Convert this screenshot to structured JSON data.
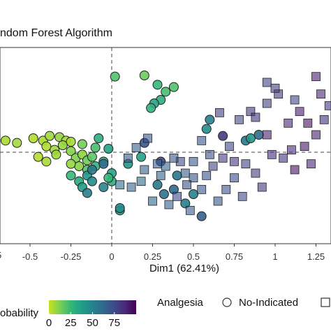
{
  "chart_data": {
    "type": "scatter",
    "title": "ndom Forest Algorithm",
    "xlabel": "Dim1 (62.41%)",
    "xlim": [
      -0.7,
      1.4
    ],
    "ylim": [
      -0.9,
      0.9
    ],
    "x_ticks": [
      -0.5,
      -0.25,
      0,
      0.25,
      0.5,
      0.75,
      1,
      1.25
    ],
    "x_tick_labels": [
      "-0.5",
      "-0.25",
      "0",
      "0.25",
      "0.5",
      "0.75",
      "1",
      "1.25"
    ],
    "left_edge_label": "5",
    "reference_lines": {
      "x": 0,
      "y": 0
    },
    "colorbar": {
      "label": "obability",
      "ticks": [
        0,
        25,
        50,
        75
      ],
      "tick_labels": [
        "0",
        "25",
        "50",
        "75"
      ],
      "range": [
        0,
        100
      ],
      "palette": [
        "#c8e020",
        "#7ad151",
        "#35b779",
        "#1f9e89",
        "#26828e",
        "#31688e",
        "#3e4a89",
        "#482878",
        "#440154"
      ]
    },
    "shape_legend": {
      "title": "Analgesia",
      "entries": [
        {
          "label": "No-Indicated",
          "shape": "circle"
        },
        {
          "label": "",
          "shape": "square"
        }
      ]
    },
    "series": [
      {
        "shape": "circle",
        "points": [
          {
            "x": -0.65,
            "y": 0.1,
            "c": 5
          },
          {
            "x": -0.58,
            "y": 0.08,
            "c": 6
          },
          {
            "x": -0.48,
            "y": 0.12,
            "c": 4
          },
          {
            "x": -0.42,
            "y": 0.1,
            "c": 5
          },
          {
            "x": -0.38,
            "y": 0.14,
            "c": 7
          },
          {
            "x": -0.32,
            "y": 0.13,
            "c": 8
          },
          {
            "x": -0.28,
            "y": 0.1,
            "c": 6
          },
          {
            "x": -0.25,
            "y": 0.09,
            "c": 5
          },
          {
            "x": -0.4,
            "y": 0.05,
            "c": 4
          },
          {
            "x": -0.35,
            "y": 0.02,
            "c": 6
          },
          {
            "x": -0.3,
            "y": 0.06,
            "c": 8
          },
          {
            "x": -0.25,
            "y": 0.01,
            "c": 10
          },
          {
            "x": -0.45,
            "y": -0.04,
            "c": 3
          },
          {
            "x": -0.4,
            "y": -0.08,
            "c": 5
          },
          {
            "x": -0.34,
            "y": -0.02,
            "c": 7
          },
          {
            "x": -0.22,
            "y": -0.05,
            "c": 12
          },
          {
            "x": -0.18,
            "y": -0.02,
            "c": 9
          },
          {
            "x": -0.15,
            "y": -0.07,
            "c": 15
          },
          {
            "x": -0.12,
            "y": -0.04,
            "c": 18
          },
          {
            "x": -0.2,
            "y": -0.12,
            "c": 10
          },
          {
            "x": -0.25,
            "y": -0.1,
            "c": 8
          },
          {
            "x": -0.15,
            "y": -0.15,
            "c": 20
          },
          {
            "x": -0.1,
            "y": -0.12,
            "c": 28
          },
          {
            "x": -0.05,
            "y": -0.08,
            "c": 30
          },
          {
            "x": -0.02,
            "y": 0.03,
            "c": 35
          },
          {
            "x": -0.1,
            "y": 0.04,
            "c": 22
          },
          {
            "x": -0.18,
            "y": 0.07,
            "c": 14
          },
          {
            "x": -0.08,
            "y": 0.12,
            "c": 30
          },
          {
            "x": -0.25,
            "y": -0.2,
            "c": 25
          },
          {
            "x": -0.2,
            "y": -0.25,
            "c": 32
          },
          {
            "x": -0.18,
            "y": -0.3,
            "c": 38
          },
          {
            "x": -0.15,
            "y": -0.2,
            "c": 40
          },
          {
            "x": -0.12,
            "y": -0.25,
            "c": 45
          },
          {
            "x": -0.05,
            "y": -0.3,
            "c": 48
          },
          {
            "x": 0.0,
            "y": -0.25,
            "c": 30
          },
          {
            "x": -0.15,
            "y": -0.35,
            "c": 50
          },
          {
            "x": 0.05,
            "y": -0.5,
            "c": 40
          },
          {
            "x": 0.02,
            "y": 0.65,
            "c": 20
          },
          {
            "x": 0.2,
            "y": 0.66,
            "c": 15
          },
          {
            "x": 0.28,
            "y": 0.58,
            "c": 25
          },
          {
            "x": 0.33,
            "y": 0.52,
            "c": 22
          },
          {
            "x": 0.3,
            "y": 0.45,
            "c": 30
          },
          {
            "x": 0.26,
            "y": 0.42,
            "c": 35
          },
          {
            "x": 0.24,
            "y": 0.38,
            "c": 28
          },
          {
            "x": 0.38,
            "y": 0.56,
            "c": 20
          },
          {
            "x": 0.58,
            "y": 0.2,
            "c": 45
          },
          {
            "x": 0.6,
            "y": 0.28,
            "c": 50
          },
          {
            "x": 0.68,
            "y": 0.14,
            "c": 80
          },
          {
            "x": 0.82,
            "y": 0.1,
            "c": 55
          },
          {
            "x": 0.85,
            "y": 0.12,
            "c": 40
          },
          {
            "x": 0.9,
            "y": 0.15,
            "c": 60
          },
          {
            "x": 0.2,
            "y": 0.08,
            "c": 70
          },
          {
            "x": -0.05,
            "y": -0.1,
            "c": 60
          },
          {
            "x": 0.18,
            "y": -0.04,
            "c": 35
          },
          {
            "x": 0.28,
            "y": -0.28,
            "c": 55
          },
          {
            "x": 0.32,
            "y": -0.36,
            "c": 58
          },
          {
            "x": 0.38,
            "y": -0.32,
            "c": 62
          },
          {
            "x": 0.5,
            "y": -0.36,
            "c": 50
          },
          {
            "x": 0.55,
            "y": -0.55,
            "c": 65
          },
          {
            "x": 0.4,
            "y": -0.2,
            "c": 55
          },
          {
            "x": 0.05,
            "y": -0.48,
            "c": 45
          },
          {
            "x": 0.45,
            "y": -0.44,
            "c": 52
          },
          {
            "x": 0.1,
            "y": -0.1,
            "c": 40
          },
          {
            "x": 0.0,
            "y": -0.18,
            "c": 35
          },
          {
            "x": -0.02,
            "y": -0.22,
            "c": 25
          },
          {
            "x": -0.12,
            "y": -0.15,
            "c": 55
          },
          {
            "x": 0.3,
            "y": -0.08,
            "c": 75
          }
        ]
      },
      {
        "shape": "square",
        "points": [
          {
            "x": 1.25,
            "y": 0.65,
            "c": 90
          },
          {
            "x": 1.12,
            "y": 0.45,
            "c": 75
          },
          {
            "x": 1.02,
            "y": 0.5,
            "c": 80
          },
          {
            "x": 0.95,
            "y": 0.42,
            "c": 78
          },
          {
            "x": 0.85,
            "y": 0.35,
            "c": 82
          },
          {
            "x": 0.78,
            "y": 0.28,
            "c": 76
          },
          {
            "x": 0.66,
            "y": 0.34,
            "c": 80
          },
          {
            "x": 0.95,
            "y": 0.6,
            "c": 78
          },
          {
            "x": 0.88,
            "y": 0.3,
            "c": 84
          },
          {
            "x": 1.0,
            "y": 0.55,
            "c": 80
          },
          {
            "x": 1.08,
            "y": 0.25,
            "c": 88
          },
          {
            "x": 1.15,
            "y": 0.35,
            "c": 92
          },
          {
            "x": 1.2,
            "y": 0.25,
            "c": 95
          },
          {
            "x": 1.3,
            "y": 0.28,
            "c": 85
          },
          {
            "x": 1.28,
            "y": 0.5,
            "c": 88
          },
          {
            "x": 1.33,
            "y": 0.4,
            "c": 80
          },
          {
            "x": 1.25,
            "y": 0.15,
            "c": 90
          },
          {
            "x": 1.18,
            "y": 0.05,
            "c": 94
          },
          {
            "x": 1.1,
            "y": 0.02,
            "c": 87
          },
          {
            "x": 1.05,
            "y": -0.05,
            "c": 83
          },
          {
            "x": 0.98,
            "y": -0.02,
            "c": 85
          },
          {
            "x": 1.12,
            "y": -0.15,
            "c": 95
          },
          {
            "x": 1.22,
            "y": -0.1,
            "c": 88
          },
          {
            "x": 0.95,
            "y": 0.15,
            "c": 90
          },
          {
            "x": 0.82,
            "y": -0.1,
            "c": 78
          },
          {
            "x": 0.75,
            "y": -0.08,
            "c": 82
          },
          {
            "x": 0.68,
            "y": -0.05,
            "c": 80
          },
          {
            "x": 0.62,
            "y": -0.12,
            "c": 76
          },
          {
            "x": 0.58,
            "y": -0.2,
            "c": 72
          },
          {
            "x": 0.5,
            "y": -0.22,
            "c": 70
          },
          {
            "x": 0.45,
            "y": -0.18,
            "c": 68
          },
          {
            "x": 0.42,
            "y": -0.08,
            "c": 74
          },
          {
            "x": 0.38,
            "y": -0.05,
            "c": 70
          },
          {
            "x": 0.33,
            "y": -0.12,
            "c": 65
          },
          {
            "x": 0.28,
            "y": -0.1,
            "c": 68
          },
          {
            "x": 0.22,
            "y": 0.12,
            "c": 72
          },
          {
            "x": 0.15,
            "y": 0.04,
            "c": 66
          },
          {
            "x": 0.1,
            "y": -0.05,
            "c": 70
          },
          {
            "x": 0.05,
            "y": -0.28,
            "c": 60
          },
          {
            "x": 0.12,
            "y": -0.3,
            "c": 64
          },
          {
            "x": 0.25,
            "y": -0.42,
            "c": 62
          },
          {
            "x": 0.35,
            "y": -0.45,
            "c": 66
          },
          {
            "x": 0.48,
            "y": -0.5,
            "c": 68
          },
          {
            "x": 0.65,
            "y": -0.42,
            "c": 70
          },
          {
            "x": 0.7,
            "y": -0.32,
            "c": 72
          },
          {
            "x": 0.75,
            "y": -0.22,
            "c": 74
          },
          {
            "x": 0.8,
            "y": -0.38,
            "c": 76
          },
          {
            "x": 0.88,
            "y": -0.18,
            "c": 80
          },
          {
            "x": 0.92,
            "y": -0.3,
            "c": 82
          },
          {
            "x": 0.55,
            "y": -0.32,
            "c": 70
          },
          {
            "x": 0.46,
            "y": -0.28,
            "c": 72
          },
          {
            "x": 0.4,
            "y": -0.38,
            "c": 74
          },
          {
            "x": 0.3,
            "y": -0.2,
            "c": 64
          },
          {
            "x": 0.2,
            "y": -0.15,
            "c": 66
          },
          {
            "x": 0.18,
            "y": -0.25,
            "c": 60
          },
          {
            "x": 0.55,
            "y": 0.1,
            "c": 70
          },
          {
            "x": 0.6,
            "y": -0.02,
            "c": 72
          },
          {
            "x": 0.72,
            "y": 0.05,
            "c": 76
          },
          {
            "x": 0.5,
            "y": -0.08,
            "c": 68
          }
        ]
      }
    ]
  }
}
